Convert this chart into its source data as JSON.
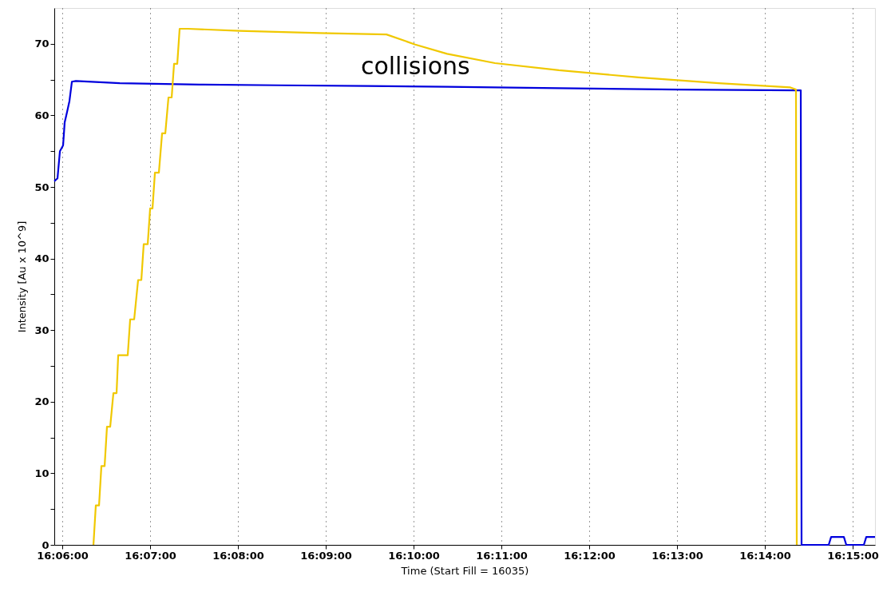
{
  "chart_data": {
    "type": "line",
    "xlabel": "Time (Start Fill = 16035)",
    "ylabel": "Intensity [Au x 10^9]",
    "annotations": [
      "collisions"
    ],
    "xlim": [
      16.09848,
      16.25424
    ],
    "ylim": [
      0,
      75
    ],
    "xticks": [
      {
        "value": 16.1,
        "label": "16:06:00"
      },
      {
        "value": 16.11667,
        "label": "16:07:00"
      },
      {
        "value": 16.13333,
        "label": "16:08:00"
      },
      {
        "value": 16.15,
        "label": "16:09:00"
      },
      {
        "value": 16.16667,
        "label": "16:10:00"
      },
      {
        "value": 16.18333,
        "label": "16:11:00"
      },
      {
        "value": 16.2,
        "label": "16:12:00"
      },
      {
        "value": 16.21667,
        "label": "16:13:00"
      },
      {
        "value": 16.23333,
        "label": "16:14:00"
      },
      {
        "value": 16.25,
        "label": "16:15:00"
      }
    ],
    "yticks": [
      0,
      {
        "value": 5,
        "label": null
      },
      10,
      {
        "value": 15,
        "label": null
      },
      20,
      {
        "value": 25,
        "label": null
      },
      30,
      {
        "value": 35,
        "label": null
      },
      40,
      {
        "value": 45,
        "label": null
      },
      50,
      {
        "value": 55,
        "label": null
      },
      60,
      {
        "value": 65,
        "label": null
      },
      70
    ],
    "grid": "x",
    "line_style": "solid",
    "marker": "none",
    "series": [
      {
        "color": "#0000dd",
        "x": [
          16.09848,
          16.09909,
          16.09955,
          16.10015,
          16.10045,
          16.10091,
          16.10136,
          16.10182,
          16.10258,
          16.11091,
          16.12606,
          16.14121,
          16.15788,
          16.17303,
          16.19424,
          16.21697,
          16.2397,
          16.24015,
          16.2403,
          16.24545,
          16.24591,
          16.24833,
          16.24879,
          16.25212,
          16.25258,
          16.25424
        ],
        "values": [
          50.8,
          51.2,
          55,
          55.8,
          59,
          60.5,
          62,
          64.7,
          64.8,
          64.5,
          64.3,
          64.2,
          64.1,
          64.0,
          63.8,
          63.6,
          63.5,
          63.5,
          0,
          0,
          1.1,
          1.1,
          0,
          0,
          1.1,
          1.1
        ]
      },
      {
        "color": "#f0c800",
        "x": [
          16.10591,
          16.10636,
          16.10697,
          16.10742,
          16.10803,
          16.10848,
          16.10909,
          16.1097,
          16.1103,
          16.11061,
          16.11242,
          16.11288,
          16.11364,
          16.11439,
          16.115,
          16.11545,
          16.11621,
          16.11667,
          16.11712,
          16.11758,
          16.11833,
          16.11894,
          16.11955,
          16.12015,
          16.12076,
          16.12121,
          16.12182,
          16.12227,
          16.12379,
          16.13364,
          16.14879,
          16.16152,
          16.16697,
          16.17303,
          16.18212,
          16.19424,
          16.20939,
          16.22455,
          16.23818,
          16.23924,
          16.23939
        ],
        "values": [
          0,
          5.5,
          5.5,
          11,
          11,
          16.5,
          16.5,
          21.2,
          21.2,
          26.5,
          26.5,
          31.5,
          31.5,
          37,
          37,
          42,
          42,
          47,
          47,
          52,
          52,
          57.5,
          57.5,
          62.5,
          62.5,
          67.2,
          67.2,
          72.1,
          72.1,
          71.8,
          71.5,
          71.3,
          69.9,
          68.6,
          67.3,
          66.3,
          65.3,
          64.5,
          63.9,
          63.6,
          0
        ]
      }
    ]
  }
}
